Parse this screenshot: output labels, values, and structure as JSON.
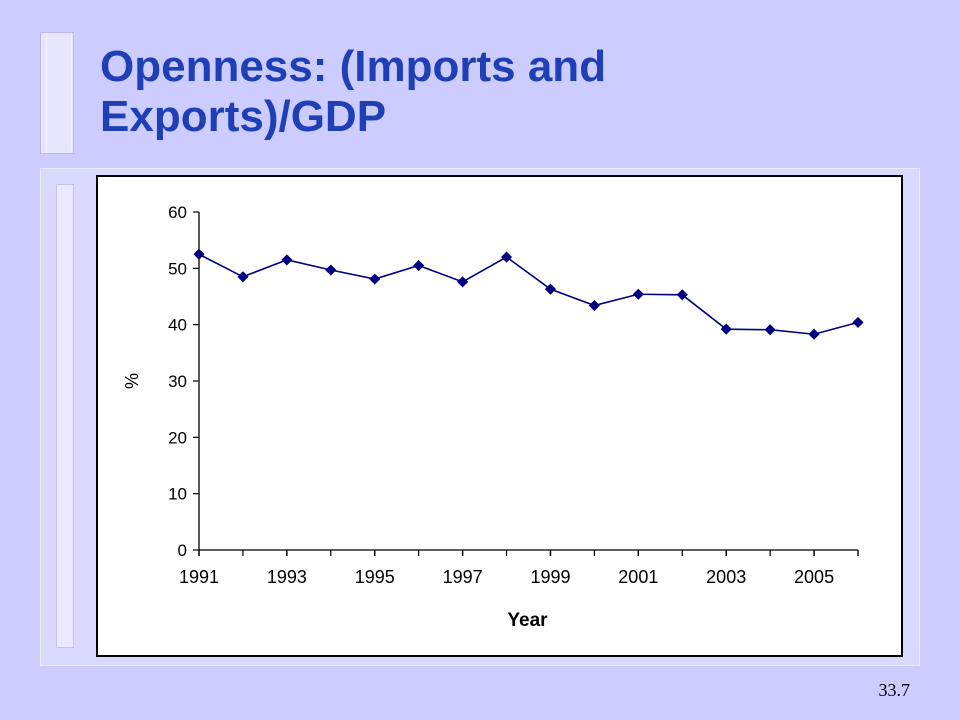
{
  "slide": {
    "title_line1": "Openness: (Imports and",
    "title_line2": "Exports)/GDP",
    "number": "33.7"
  },
  "colors": {
    "background": "#ccccff",
    "title": "#1f3fb7",
    "series": "#000080"
  },
  "chart_data": {
    "type": "line",
    "title": "",
    "xlabel": "Year",
    "ylabel": "%",
    "x": [
      1991,
      1992,
      1993,
      1994,
      1995,
      1996,
      1997,
      1998,
      1999,
      2000,
      2001,
      2002,
      2003,
      2004,
      2005,
      2006
    ],
    "series": [
      {
        "values": [
          52.5,
          48.5,
          51.5,
          49.7,
          48.1,
          50.5,
          47.6,
          52.0,
          46.3,
          43.4,
          45.4,
          45.3,
          39.2,
          39.1,
          38.3,
          40.4
        ]
      }
    ],
    "xticks": [
      "1991",
      "1993",
      "1995",
      "1997",
      "1999",
      "2001",
      "2003",
      "2005"
    ],
    "yticks": [
      "0",
      "10",
      "20",
      "30",
      "40",
      "50",
      "60"
    ],
    "xlim": [
      1991,
      2006
    ],
    "ylim": [
      0,
      60
    ],
    "grid": false,
    "legend": "none",
    "marker": "diamond"
  }
}
